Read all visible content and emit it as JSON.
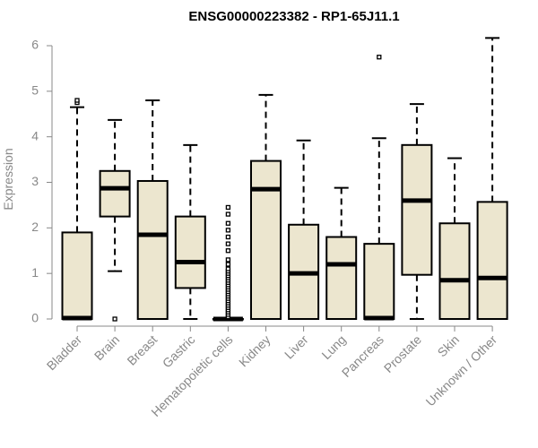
{
  "chart_data": {
    "type": "boxplot",
    "title": "ENSG00000223382 - RP1-65J11.1",
    "ylabel": "Expression",
    "xlabel": "",
    "ylim": [
      0,
      6
    ],
    "yticks": [
      "0",
      "1",
      "2",
      "3",
      "4",
      "5",
      "6"
    ],
    "grid": false,
    "colors": {
      "box_fill": "#ece6cf",
      "stroke": "#000000",
      "axis_text": "#888888"
    },
    "categories": [
      "Bladder",
      "Brain",
      "Breast",
      "Gastric",
      "Hematopoietic cells",
      "Kidney",
      "Liver",
      "Lung",
      "Pancreas",
      "Prostate",
      "Skin",
      "Unknown / Other"
    ],
    "boxes": [
      {
        "category": "Bladder",
        "whisker_low": 0,
        "q1": 0,
        "median": 0.02,
        "q3": 1.9,
        "whisker_high": 4.65,
        "outliers": [
          4.75,
          4.8
        ]
      },
      {
        "category": "Brain",
        "whisker_low": 1.05,
        "q1": 2.25,
        "median": 2.87,
        "q3": 3.25,
        "whisker_high": 4.37,
        "outliers": [
          0.0
        ]
      },
      {
        "category": "Breast",
        "whisker_low": 0,
        "q1": 0,
        "median": 1.85,
        "q3": 3.03,
        "whisker_high": 4.8,
        "outliers": []
      },
      {
        "category": "Gastric",
        "whisker_low": 0,
        "q1": 0.68,
        "median": 1.25,
        "q3": 2.25,
        "whisker_high": 3.82,
        "outliers": []
      },
      {
        "category": "Hematopoietic cells",
        "whisker_low": 0,
        "q1": 0,
        "median": 0,
        "q3": 0,
        "whisker_high": 0,
        "outliers": [
          0.05,
          0.1,
          0.15,
          0.2,
          0.25,
          0.3,
          0.35,
          0.4,
          0.45,
          0.5,
          0.55,
          0.6,
          0.65,
          0.7,
          0.75,
          0.8,
          0.85,
          0.9,
          0.95,
          1.0,
          1.05,
          1.1,
          1.2,
          1.3,
          1.5,
          1.65,
          1.8,
          1.95,
          2.1,
          2.3,
          2.45
        ]
      },
      {
        "category": "Kidney",
        "whisker_low": 0,
        "q1": 0,
        "median": 2.85,
        "q3": 3.47,
        "whisker_high": 4.92,
        "outliers": []
      },
      {
        "category": "Liver",
        "whisker_low": 0,
        "q1": 0,
        "median": 1.0,
        "q3": 2.07,
        "whisker_high": 3.92,
        "outliers": []
      },
      {
        "category": "Lung",
        "whisker_low": 0,
        "q1": 0,
        "median": 1.2,
        "q3": 1.8,
        "whisker_high": 2.88,
        "outliers": []
      },
      {
        "category": "Pancreas",
        "whisker_low": 0,
        "q1": 0,
        "median": 0.02,
        "q3": 1.65,
        "whisker_high": 3.97,
        "outliers": [
          5.75
        ]
      },
      {
        "category": "Prostate",
        "whisker_low": 0,
        "q1": 0.97,
        "median": 2.6,
        "q3": 3.82,
        "whisker_high": 4.72,
        "outliers": []
      },
      {
        "category": "Skin",
        "whisker_low": 0,
        "q1": 0,
        "median": 0.85,
        "q3": 2.1,
        "whisker_high": 3.53,
        "outliers": []
      },
      {
        "category": "Unknown / Other",
        "whisker_low": 0,
        "q1": 0,
        "median": 0.9,
        "q3": 2.57,
        "whisker_high": 6.17,
        "outliers": []
      }
    ]
  }
}
